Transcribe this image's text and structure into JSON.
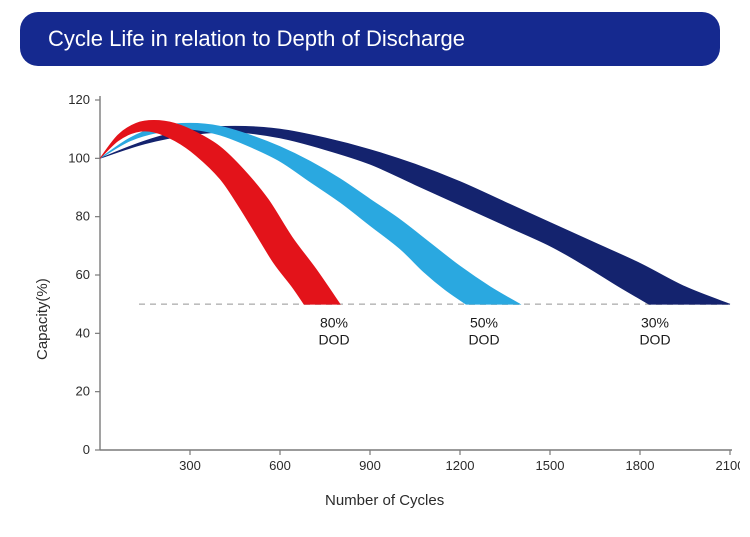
{
  "title": {
    "text": "Cycle Life in relation to Depth of Discharge",
    "bg_color": "#15298f",
    "text_color": "#ffffff",
    "fontsize": 22
  },
  "chart": {
    "type": "line-band",
    "xlabel": "Number of Cycles",
    "ylabel": "Capacity(%)",
    "label_fontsize": 15,
    "tick_fontsize": 13,
    "text_color": "#2b2b2b",
    "xlim": [
      0,
      2100
    ],
    "ylim": [
      0,
      120
    ],
    "xtick_step": 300,
    "xticks": [
      300,
      600,
      900,
      1200,
      1500,
      1800,
      2100
    ],
    "ytick_step": 20,
    "yticks": [
      0,
      20,
      40,
      60,
      80,
      100,
      120
    ],
    "axis_color": "#7a7a7a",
    "ref_line": {
      "y": 50,
      "color": "#bdbdbd",
      "dash": "6,5"
    },
    "background_color": "#ffffff",
    "series": [
      {
        "label1": "80%",
        "label2": "DOD",
        "label_x": 780,
        "color": "#e3131a",
        "upper": [
          [
            0,
            100
          ],
          [
            60,
            108
          ],
          [
            120,
            112
          ],
          [
            180,
            113
          ],
          [
            250,
            112
          ],
          [
            320,
            109
          ],
          [
            400,
            104
          ],
          [
            480,
            96
          ],
          [
            560,
            86
          ],
          [
            640,
            73
          ],
          [
            720,
            62
          ],
          [
            800,
            50
          ]
        ],
        "lower": [
          [
            0,
            100
          ],
          [
            60,
            106
          ],
          [
            120,
            109
          ],
          [
            180,
            109
          ],
          [
            250,
            106
          ],
          [
            320,
            101
          ],
          [
            400,
            93
          ],
          [
            460,
            84
          ],
          [
            520,
            74
          ],
          [
            580,
            64
          ],
          [
            640,
            56
          ],
          [
            680,
            50
          ]
        ]
      },
      {
        "label1": "50%",
        "label2": "DOD",
        "label_x": 1280,
        "color": "#2aa8e0",
        "upper": [
          [
            0,
            100
          ],
          [
            100,
            107
          ],
          [
            200,
            111
          ],
          [
            300,
            112
          ],
          [
            400,
            111
          ],
          [
            500,
            108
          ],
          [
            600,
            104
          ],
          [
            700,
            99
          ],
          [
            800,
            93
          ],
          [
            900,
            86
          ],
          [
            1000,
            79
          ],
          [
            1100,
            71
          ],
          [
            1200,
            63
          ],
          [
            1300,
            56
          ],
          [
            1400,
            50
          ]
        ],
        "lower": [
          [
            0,
            100
          ],
          [
            100,
            106
          ],
          [
            200,
            109
          ],
          [
            300,
            110
          ],
          [
            400,
            108
          ],
          [
            500,
            104
          ],
          [
            600,
            99
          ],
          [
            700,
            92
          ],
          [
            800,
            85
          ],
          [
            900,
            77
          ],
          [
            1000,
            69
          ],
          [
            1080,
            61
          ],
          [
            1150,
            55
          ],
          [
            1220,
            50
          ]
        ]
      },
      {
        "label1": "30%",
        "label2": "DOD",
        "label_x": 1850,
        "color": "#14236e",
        "upper": [
          [
            0,
            100
          ],
          [
            150,
            106
          ],
          [
            300,
            110
          ],
          [
            450,
            111
          ],
          [
            600,
            110
          ],
          [
            750,
            107
          ],
          [
            900,
            103
          ],
          [
            1050,
            98
          ],
          [
            1200,
            92
          ],
          [
            1350,
            85
          ],
          [
            1500,
            78
          ],
          [
            1650,
            71
          ],
          [
            1800,
            64
          ],
          [
            1950,
            56
          ],
          [
            2100,
            50
          ]
        ],
        "lower": [
          [
            0,
            100
          ],
          [
            150,
            105
          ],
          [
            300,
            108
          ],
          [
            450,
            109
          ],
          [
            600,
            107
          ],
          [
            750,
            103
          ],
          [
            900,
            98
          ],
          [
            1050,
            91
          ],
          [
            1200,
            84
          ],
          [
            1350,
            77
          ],
          [
            1500,
            70
          ],
          [
            1620,
            63
          ],
          [
            1730,
            56
          ],
          [
            1830,
            50
          ]
        ]
      }
    ]
  }
}
